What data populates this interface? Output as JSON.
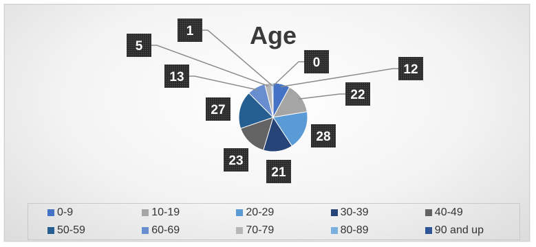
{
  "chart_data": {
    "type": "pie",
    "title": "Age",
    "categories": [
      "0-9",
      "10-19",
      "20-29",
      "30-39",
      "40-49",
      "50-59",
      "60-69",
      "70-79",
      "80-89",
      "90 and up"
    ],
    "values": [
      12,
      22,
      28,
      21,
      23,
      27,
      13,
      5,
      1,
      0
    ],
    "colors": [
      "#4472C4",
      "#A5A5A5",
      "#5B9BD5",
      "#264478",
      "#636363",
      "#255E91",
      "#698ED0",
      "#B7B7B7",
      "#7CAFDD",
      "#2F5597"
    ],
    "legend_position": "bottom",
    "data_labels": true
  }
}
